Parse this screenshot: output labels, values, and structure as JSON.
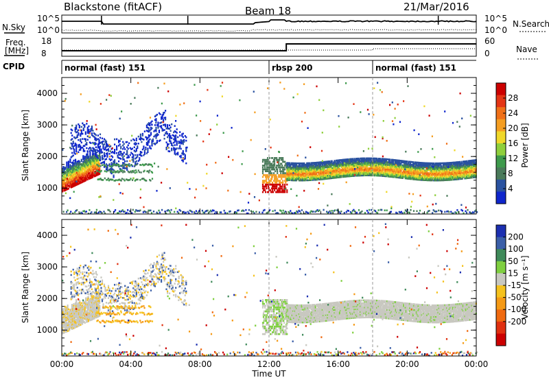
{
  "header": {
    "radar": "Blackstone (fitACF)",
    "beam": "Beam 18",
    "date": "21/Mar/2016"
  },
  "top_panels": {
    "nsky_label": "N.Sky",
    "nsearch_label": "N.Search",
    "freq_label_1": "Freq.",
    "freq_label_2": "[MHz]",
    "nave_label": "Nave",
    "cpid_label": "CPID",
    "nsky_ticks": [
      "10^5",
      "10^0"
    ],
    "nsearch_ticks": [
      "10^5",
      "10^0"
    ],
    "freq_ticks": [
      "18",
      "8"
    ],
    "nave_ticks": [
      "60",
      "0"
    ]
  },
  "cpid_segments": [
    {
      "label": "normal (fast) 151",
      "start_hour": 0
    },
    {
      "label": "rbsp 200",
      "start_hour": 12
    },
    {
      "label": "normal (fast) 151",
      "start_hour": 18
    }
  ],
  "colors": {
    "power": [
      "#0f26cc",
      "#2a52a0",
      "#4a7a5a",
      "#3e9a4c",
      "#8fcf3c",
      "#f0d82a",
      "#f59e22",
      "#f07018",
      "#e43515",
      "#cc0000"
    ],
    "velocity": [
      "#1c2fb0",
      "#3b5fa8",
      "#3f8a5a",
      "#7fcf40",
      "#c8c8c0",
      "#f5c21e",
      "#f59a16",
      "#f06a10",
      "#e03010",
      "#cc0000"
    ]
  },
  "chart_data": [
    {
      "type": "heatmap",
      "title": "Power",
      "xlabel": "",
      "ylabel": "Slant Range [km]",
      "x_ticks": [
        "00:00",
        "04:00",
        "08:00",
        "12:00",
        "16:00",
        "20:00",
        "00:00"
      ],
      "y_ticks": [
        "1000",
        "2000",
        "3000",
        "4000"
      ],
      "xlim_hours": [
        0,
        24
      ],
      "ylim_km": [
        180,
        4500
      ],
      "colorbar_label": "Power [dB]",
      "colorbar_ticks": [
        "4",
        "8",
        "12",
        "16",
        "20",
        "24",
        "28"
      ],
      "colorbar_range": [
        0,
        30
      ]
    },
    {
      "type": "heatmap",
      "title": "Velocity",
      "xlabel": "Time UT",
      "ylabel": "Slant Range [km]",
      "x_ticks": [
        "00:00",
        "04:00",
        "08:00",
        "12:00",
        "16:00",
        "20:00",
        "00:00"
      ],
      "y_ticks": [
        "1000",
        "2000",
        "3000",
        "4000"
      ],
      "xlim_hours": [
        0,
        24
      ],
      "ylim_km": [
        180,
        4500
      ],
      "colorbar_label": "Velocity [m s⁻¹]",
      "colorbar_ticks": [
        "200",
        "100",
        "50",
        "15",
        "-15",
        "-50",
        "-100",
        "-200"
      ],
      "colorbar_range": [
        -250,
        250
      ]
    }
  ]
}
